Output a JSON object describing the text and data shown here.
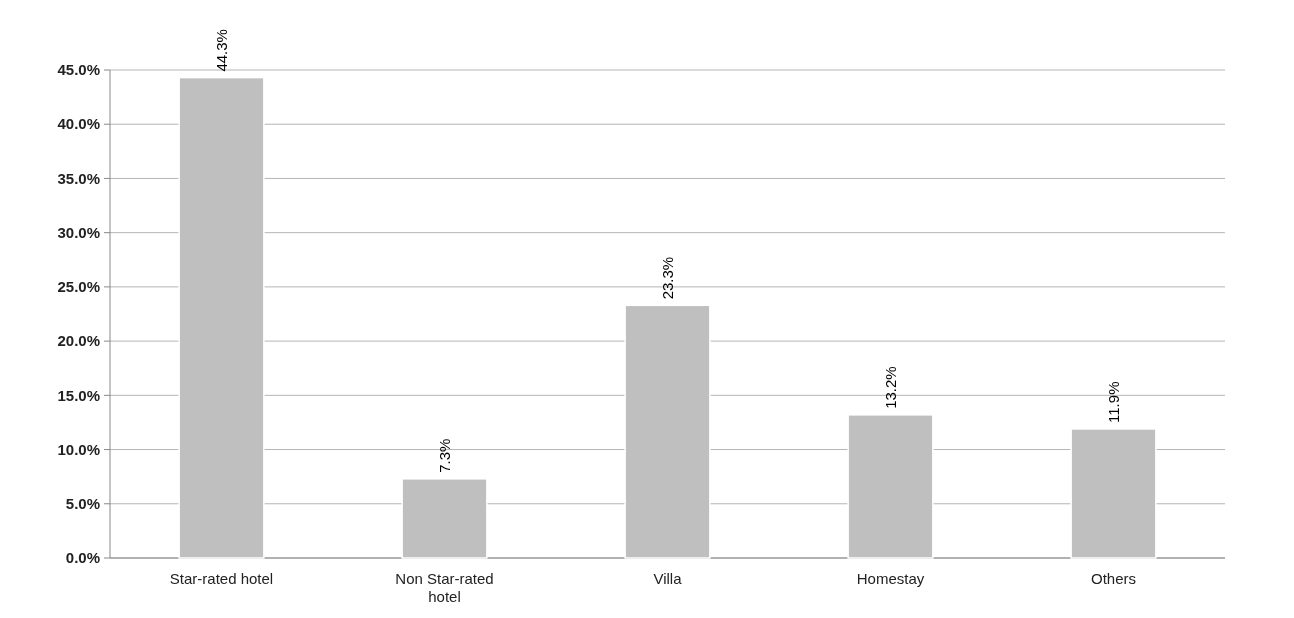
{
  "chart_data": {
    "type": "bar",
    "categories": [
      "Star-rated hotel",
      "Non Star-rated hotel",
      "Villa",
      "Homestay",
      "Others"
    ],
    "values": [
      44.3,
      7.3,
      23.3,
      13.2,
      11.9
    ],
    "value_labels": [
      "44.3%",
      "7.3%",
      "23.3%",
      "13.2%",
      "11.9%"
    ],
    "color": "#bfbfbf",
    "ylim": [
      0,
      45
    ],
    "yticks": [
      {
        "value": 0,
        "label": "0.0%"
      },
      {
        "value": 5,
        "label": "5.0%"
      },
      {
        "value": 10,
        "label": "10.0%"
      },
      {
        "value": 15,
        "label": "15.0%"
      },
      {
        "value": 20,
        "label": "20.0%"
      },
      {
        "value": 25,
        "label": "25.0%"
      },
      {
        "value": 30,
        "label": "30.0%"
      },
      {
        "value": 35,
        "label": "35.0%"
      },
      {
        "value": 40,
        "label": "40.0%"
      },
      {
        "value": 45,
        "label": "45.0%"
      }
    ],
    "grid": "y"
  }
}
